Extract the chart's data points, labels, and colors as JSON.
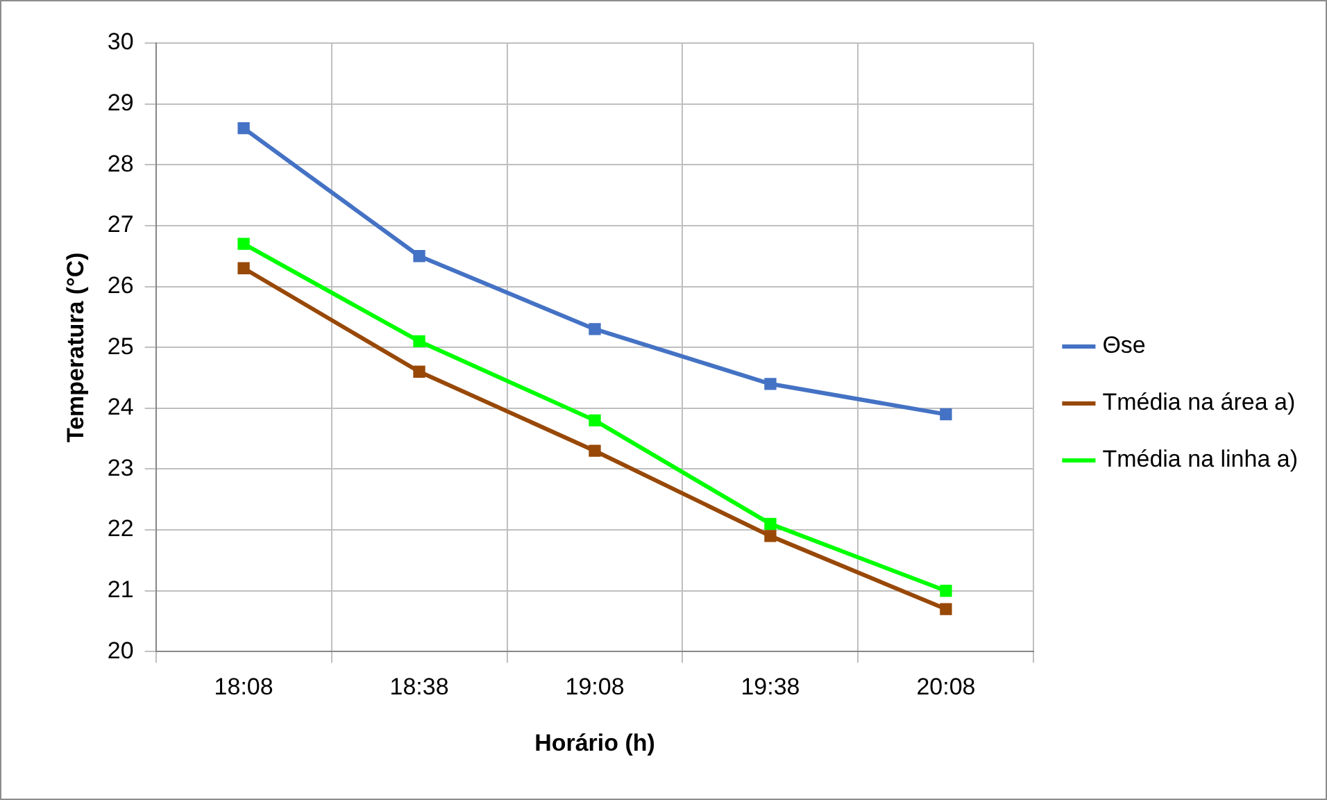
{
  "chart_data": {
    "type": "line",
    "xlabel": "Horário (h)",
    "ylabel": "Temperatura (°C)",
    "categories": [
      "18:08",
      "18:38",
      "19:08",
      "19:38",
      "20:08"
    ],
    "series": [
      {
        "name": "Θse",
        "color": "#4472c4",
        "values": [
          28.6,
          26.5,
          25.3,
          24.4,
          23.9
        ]
      },
      {
        "name": "Tmédia na área a)",
        "color": "#984807",
        "values": [
          26.3,
          24.6,
          23.3,
          21.9,
          20.7
        ]
      },
      {
        "name": "Tmédia na linha a)",
        "color": "#00ff00",
        "values": [
          26.7,
          25.1,
          23.8,
          22.1,
          21.0
        ]
      }
    ],
    "ylim": [
      20,
      30
    ],
    "yticks": [
      20,
      21,
      22,
      23,
      24,
      25,
      26,
      27,
      28,
      29,
      30
    ],
    "grid": true,
    "legend": "right",
    "marker": "square",
    "line_style": "solid"
  }
}
